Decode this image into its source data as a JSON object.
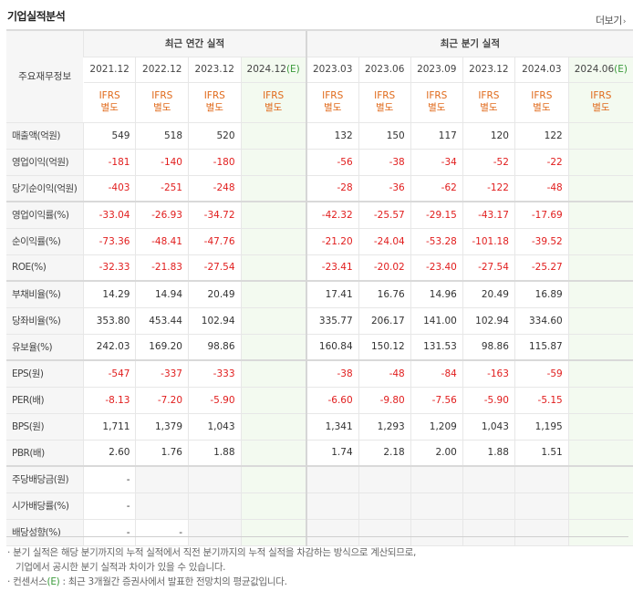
{
  "title": "기업실적분석",
  "more_label": "더보기",
  "label_header": "주요재무정보",
  "annual_header": "최근 연간 실적",
  "quarter_header": "최근 분기 실적",
  "periods": [
    "2021.12",
    "2022.12",
    "2023.12",
    "2024.12",
    "2023.03",
    "2023.06",
    "2023.09",
    "2023.12",
    "2024.03",
    "2024.06"
  ],
  "estimate_mark": "(E)",
  "ifrs_top": "IFRS",
  "ifrs_bottom": "별도",
  "rows": [
    {
      "label": "매출액(억원)",
      "values": [
        "549",
        "518",
        "520",
        "",
        "132",
        "150",
        "117",
        "120",
        "122",
        ""
      ]
    },
    {
      "label": "영업이익(억원)",
      "values": [
        "-181",
        "-140",
        "-180",
        "",
        "-56",
        "-38",
        "-34",
        "-52",
        "-22",
        ""
      ]
    },
    {
      "label": "당기순이익(억원)",
      "values": [
        "-403",
        "-251",
        "-248",
        "",
        "-28",
        "-36",
        "-62",
        "-122",
        "-48",
        ""
      ]
    },
    {
      "label": "영업이익률(%)",
      "values": [
        "-33.04",
        "-26.93",
        "-34.72",
        "",
        "-42.32",
        "-25.57",
        "-29.15",
        "-43.17",
        "-17.69",
        ""
      ]
    },
    {
      "label": "순이익률(%)",
      "values": [
        "-73.36",
        "-48.41",
        "-47.76",
        "",
        "-21.20",
        "-24.04",
        "-53.28",
        "-101.18",
        "-39.52",
        ""
      ]
    },
    {
      "label": "ROE(%)",
      "values": [
        "-32.33",
        "-21.83",
        "-27.54",
        "",
        "-23.41",
        "-20.02",
        "-23.40",
        "-27.54",
        "-25.27",
        ""
      ]
    },
    {
      "label": "부채비율(%)",
      "values": [
        "14.29",
        "14.94",
        "20.49",
        "",
        "17.41",
        "16.76",
        "14.96",
        "20.49",
        "16.89",
        ""
      ]
    },
    {
      "label": "당좌비율(%)",
      "values": [
        "353.80",
        "453.44",
        "102.94",
        "",
        "335.77",
        "206.17",
        "141.00",
        "102.94",
        "334.60",
        ""
      ]
    },
    {
      "label": "유보율(%)",
      "values": [
        "242.03",
        "169.20",
        "98.86",
        "",
        "160.84",
        "150.12",
        "131.53",
        "98.86",
        "115.87",
        ""
      ]
    },
    {
      "label": "EPS(원)",
      "values": [
        "-547",
        "-337",
        "-333",
        "",
        "-38",
        "-48",
        "-84",
        "-163",
        "-59",
        ""
      ]
    },
    {
      "label": "PER(배)",
      "values": [
        "-8.13",
        "-7.20",
        "-5.90",
        "",
        "-6.60",
        "-9.80",
        "-7.56",
        "-5.90",
        "-5.15",
        ""
      ]
    },
    {
      "label": "BPS(원)",
      "values": [
        "1,711",
        "1,379",
        "1,043",
        "",
        "1,341",
        "1,293",
        "1,209",
        "1,043",
        "1,195",
        ""
      ]
    },
    {
      "label": "PBR(배)",
      "values": [
        "2.60",
        "1.76",
        "1.88",
        "",
        "1.74",
        "2.18",
        "2.00",
        "1.88",
        "1.51",
        ""
      ]
    },
    {
      "label": "주당배당금(원)",
      "values": [
        "-",
        "",
        "",
        "",
        "",
        "",
        "",
        "",
        "",
        ""
      ]
    },
    {
      "label": "시가배당률(%)",
      "values": [
        "-",
        "",
        "",
        "",
        "",
        "",
        "",
        "",
        "",
        ""
      ]
    },
    {
      "label": "배당성향(%)",
      "values": [
        "-",
        "-",
        "",
        "",
        "",
        "",
        "",
        "",
        "",
        ""
      ]
    }
  ],
  "notes": {
    "line1": "분기 실적은 해당 분기까지의 누적 실적에서 직전 분기까지의 누적 실적을 차감하는 방식으로 계산되므로,",
    "line2": "기업에서 공시한 분기 실적과 차이가 있을 수 있습니다.",
    "line3_prefix": "컨센서스",
    "line3_mark": "(E)",
    "line3_suffix": ": 최근 3개월간 증권사에서 발표한 전망치의 평균값입니다."
  },
  "colors": {
    "negative": "#e11d1d",
    "ifrs": "#e06a1b",
    "estimate_bg": "#f3faf0",
    "estimate_mark": "#3a9a3a"
  }
}
